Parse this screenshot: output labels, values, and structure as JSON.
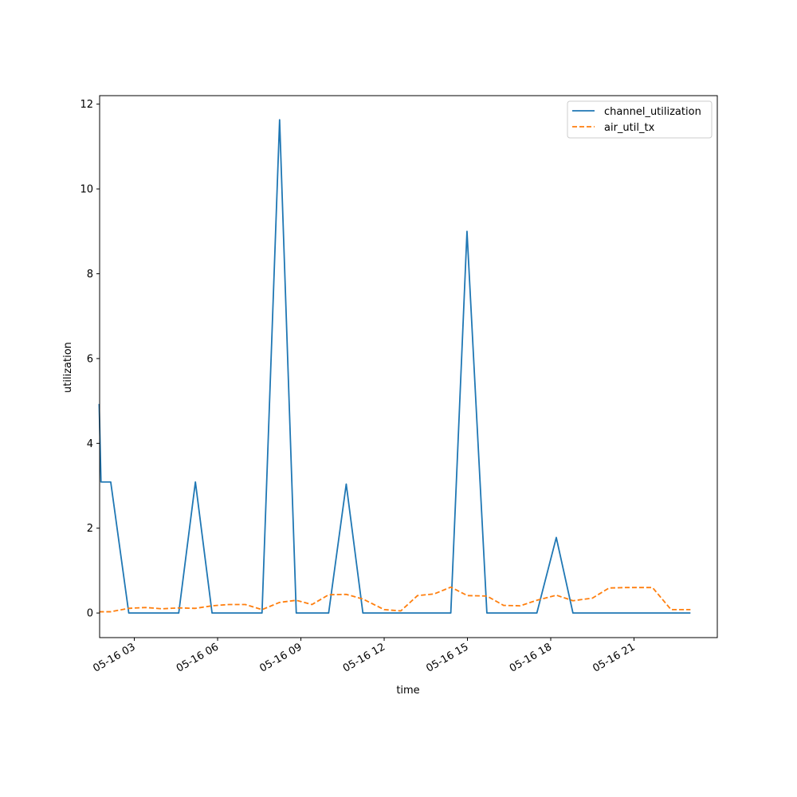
{
  "chart_data": {
    "type": "line",
    "title": "",
    "xlabel": "time",
    "ylabel": "utilization",
    "x_ticks": [
      "05-16 03",
      "05-16 06",
      "05-16 09",
      "05-16 12",
      "05-16 15",
      "05-16 18",
      "05-16 21"
    ],
    "xlim": [
      "05-16 01:45",
      "05-16 24:00"
    ],
    "y_ticks": [
      "0",
      "2",
      "4",
      "6",
      "8",
      "10",
      "12"
    ],
    "ylim": [
      -0.58,
      12.2
    ],
    "grid": false,
    "legend_position": "top-right",
    "series": [
      {
        "name": "channel_utilization",
        "color": "#1f77b4",
        "style": "solid",
        "points": [
          {
            "t": "05-16 01:44",
            "v": 4.93
          },
          {
            "t": "05-16 01:48",
            "v": 3.09
          },
          {
            "t": "05-16 02:09",
            "v": 3.09
          },
          {
            "t": "05-16 02:48",
            "v": 0.0
          },
          {
            "t": "05-16 04:36",
            "v": 0.0
          },
          {
            "t": "05-16 05:12",
            "v": 3.09
          },
          {
            "t": "05-16 05:48",
            "v": 0.0
          },
          {
            "t": "05-16 07:36",
            "v": 0.0
          },
          {
            "t": "05-16 08:14",
            "v": 11.63
          },
          {
            "t": "05-16 08:50",
            "v": 0.0
          },
          {
            "t": "05-16 10:00",
            "v": 0.0
          },
          {
            "t": "05-16 10:38",
            "v": 3.04
          },
          {
            "t": "05-16 11:14",
            "v": 0.0
          },
          {
            "t": "05-16 14:24",
            "v": 0.0
          },
          {
            "t": "05-16 14:59",
            "v": 9.0
          },
          {
            "t": "05-16 15:42",
            "v": 0.0
          },
          {
            "t": "05-16 17:30",
            "v": 0.0
          },
          {
            "t": "05-16 18:12",
            "v": 1.78
          },
          {
            "t": "05-16 18:48",
            "v": 0.0
          },
          {
            "t": "05-16 23:02",
            "v": 0.0
          }
        ]
      },
      {
        "name": "air_util_tx",
        "color": "#ff7f0e",
        "style": "dashed",
        "points": [
          {
            "t": "05-16 01:44",
            "v": 0.03
          },
          {
            "t": "05-16 02:09",
            "v": 0.03
          },
          {
            "t": "05-16 02:48",
            "v": 0.11
          },
          {
            "t": "05-16 03:24",
            "v": 0.13
          },
          {
            "t": "05-16 04:00",
            "v": 0.1
          },
          {
            "t": "05-16 04:36",
            "v": 0.12
          },
          {
            "t": "05-16 05:12",
            "v": 0.11
          },
          {
            "t": "05-16 05:48",
            "v": 0.17
          },
          {
            "t": "05-16 06:24",
            "v": 0.2
          },
          {
            "t": "05-16 07:00",
            "v": 0.2
          },
          {
            "t": "05-16 07:36",
            "v": 0.08
          },
          {
            "t": "05-16 08:14",
            "v": 0.25
          },
          {
            "t": "05-16 08:50",
            "v": 0.3
          },
          {
            "t": "05-16 09:24",
            "v": 0.2
          },
          {
            "t": "05-16 10:00",
            "v": 0.43
          },
          {
            "t": "05-16 10:38",
            "v": 0.44
          },
          {
            "t": "05-16 11:14",
            "v": 0.33
          },
          {
            "t": "05-16 12:00",
            "v": 0.08
          },
          {
            "t": "05-16 12:36",
            "v": 0.05
          },
          {
            "t": "05-16 13:12",
            "v": 0.41
          },
          {
            "t": "05-16 13:48",
            "v": 0.45
          },
          {
            "t": "05-16 14:24",
            "v": 0.61
          },
          {
            "t": "05-16 15:00",
            "v": 0.41
          },
          {
            "t": "05-16 15:42",
            "v": 0.4
          },
          {
            "t": "05-16 16:18",
            "v": 0.18
          },
          {
            "t": "05-16 16:54",
            "v": 0.17
          },
          {
            "t": "05-16 17:30",
            "v": 0.3
          },
          {
            "t": "05-16 18:12",
            "v": 0.42
          },
          {
            "t": "05-16 18:48",
            "v": 0.29
          },
          {
            "t": "05-16 19:30",
            "v": 0.35
          },
          {
            "t": "05-16 20:06",
            "v": 0.59
          },
          {
            "t": "05-16 20:42",
            "v": 0.6
          },
          {
            "t": "05-16 21:18",
            "v": 0.6
          },
          {
            "t": "05-16 21:40",
            "v": 0.6
          },
          {
            "t": "05-16 22:20",
            "v": 0.08
          },
          {
            "t": "05-16 23:02",
            "v": 0.08
          }
        ]
      }
    ]
  }
}
